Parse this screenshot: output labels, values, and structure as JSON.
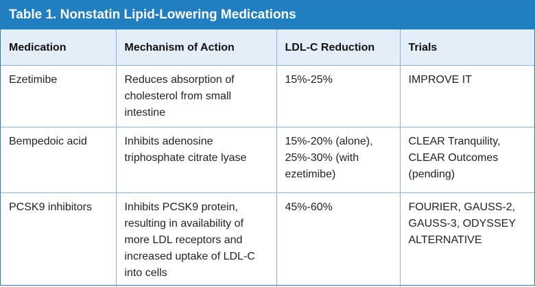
{
  "title": "Table 1. Nonstatin Lipid-Lowering Medications",
  "columns": [
    "Medication",
    "Mechanism of Action",
    "LDL-C Reduction",
    "Trials"
  ],
  "rows": [
    {
      "medication": "Ezetimibe",
      "mechanism": "Reduces absorption of\ncholesterol from small\nintestine",
      "reduction": "15%-25%",
      "trials": "IMPROVE IT"
    },
    {
      "medication": "Bempedoic acid",
      "mechanism": "Inhibits adenosine\ntriphosphate citrate lyase",
      "reduction": "15%-20% (alone),\n25%-30% (with\nezetimibe)",
      "trials": "CLEAR Tranquility,\nCLEAR Outcomes\n(pending)"
    },
    {
      "medication": "PCSK9 inhibitors",
      "mechanism": "Inhibits PCSK9 protein,\nresulting in availability of\nmore LDL receptors and\nincreased uptake of LDL-C\ninto cells",
      "reduction": "45%-60%",
      "trials": "FOURIER, GAUSS-2,\nGAUSS-3, ODYSSEY\nALTERNATIVE"
    }
  ],
  "colors": {
    "title_bar": "#1f7fc1",
    "header_row": "#e3eef8",
    "border": "#8ab3d3"
  }
}
